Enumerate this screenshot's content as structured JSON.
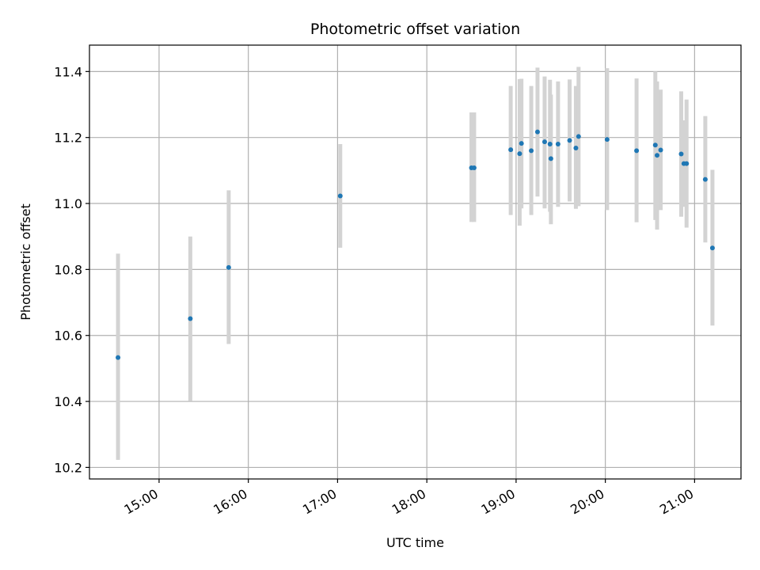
{
  "chart_data": {
    "type": "scatter",
    "title": "Photometric offset variation",
    "xlabel": "UTC time",
    "ylabel": "Photometric offset",
    "x_unit": "UTC hour",
    "xlim": [
      14.22,
      21.52
    ],
    "ylim": [
      10.165,
      11.48
    ],
    "grid": true,
    "colors": {
      "point": "#1f77b4",
      "errorbar": "#d3d3d3",
      "grid": "#b0b0b0"
    },
    "xticks": [
      {
        "value": 15,
        "label": "15:00"
      },
      {
        "value": 16,
        "label": "16:00"
      },
      {
        "value": 17,
        "label": "17:00"
      },
      {
        "value": 18,
        "label": "18:00"
      },
      {
        "value": 19,
        "label": "19:00"
      },
      {
        "value": 20,
        "label": "20:00"
      },
      {
        "value": 21,
        "label": "21:00"
      }
    ],
    "yticks": [
      {
        "value": 10.2,
        "label": "10.2"
      },
      {
        "value": 10.4,
        "label": "10.4"
      },
      {
        "value": 10.6,
        "label": "10.6"
      },
      {
        "value": 10.8,
        "label": "10.8"
      },
      {
        "value": 11.0,
        "label": "11.0"
      },
      {
        "value": 11.2,
        "label": "11.2"
      },
      {
        "value": 11.4,
        "label": "11.4"
      }
    ],
    "points": [
      {
        "x": 14.54,
        "y": 10.533,
        "lo": 10.223,
        "hi": 10.848
      },
      {
        "x": 15.35,
        "y": 10.651,
        "lo": 10.402,
        "hi": 10.9
      },
      {
        "x": 15.78,
        "y": 10.806,
        "lo": 10.574,
        "hi": 11.04
      },
      {
        "x": 17.03,
        "y": 11.023,
        "lo": 10.866,
        "hi": 11.18
      },
      {
        "x": 18.5,
        "y": 11.108,
        "lo": 10.944,
        "hi": 11.276
      },
      {
        "x": 18.53,
        "y": 11.108,
        "lo": 10.944,
        "hi": 11.276
      },
      {
        "x": 18.94,
        "y": 11.163,
        "lo": 10.965,
        "hi": 11.356
      },
      {
        "x": 19.04,
        "y": 11.151,
        "lo": 10.933,
        "hi": 11.377
      },
      {
        "x": 19.06,
        "y": 11.182,
        "lo": 10.985,
        "hi": 11.378
      },
      {
        "x": 19.17,
        "y": 11.16,
        "lo": 10.965,
        "hi": 11.356
      },
      {
        "x": 19.24,
        "y": 11.217,
        "lo": 11.021,
        "hi": 11.412
      },
      {
        "x": 19.32,
        "y": 11.187,
        "lo": 10.985,
        "hi": 11.385
      },
      {
        "x": 19.38,
        "y": 11.18,
        "lo": 10.975,
        "hi": 11.375
      },
      {
        "x": 19.39,
        "y": 11.136,
        "lo": 10.937,
        "hi": 11.33
      },
      {
        "x": 19.47,
        "y": 11.18,
        "lo": 10.99,
        "hi": 11.37
      },
      {
        "x": 19.6,
        "y": 11.191,
        "lo": 11.006,
        "hi": 11.376
      },
      {
        "x": 19.67,
        "y": 11.168,
        "lo": 10.984,
        "hi": 11.356
      },
      {
        "x": 19.7,
        "y": 11.203,
        "lo": 10.992,
        "hi": 11.414
      },
      {
        "x": 20.02,
        "y": 11.194,
        "lo": 10.98,
        "hi": 11.41
      },
      {
        "x": 20.35,
        "y": 11.16,
        "lo": 10.943,
        "hi": 11.379
      },
      {
        "x": 20.56,
        "y": 11.177,
        "lo": 10.95,
        "hi": 11.4
      },
      {
        "x": 20.58,
        "y": 11.146,
        "lo": 10.921,
        "hi": 11.37
      },
      {
        "x": 20.62,
        "y": 11.162,
        "lo": 10.98,
        "hi": 11.345
      },
      {
        "x": 20.85,
        "y": 11.15,
        "lo": 10.96,
        "hi": 11.34
      },
      {
        "x": 20.88,
        "y": 11.121,
        "lo": 10.99,
        "hi": 11.252
      },
      {
        "x": 20.91,
        "y": 11.121,
        "lo": 10.927,
        "hi": 11.315
      },
      {
        "x": 21.12,
        "y": 11.073,
        "lo": 10.882,
        "hi": 11.265
      },
      {
        "x": 21.2,
        "y": 10.865,
        "lo": 10.63,
        "hi": 11.102
      }
    ]
  }
}
